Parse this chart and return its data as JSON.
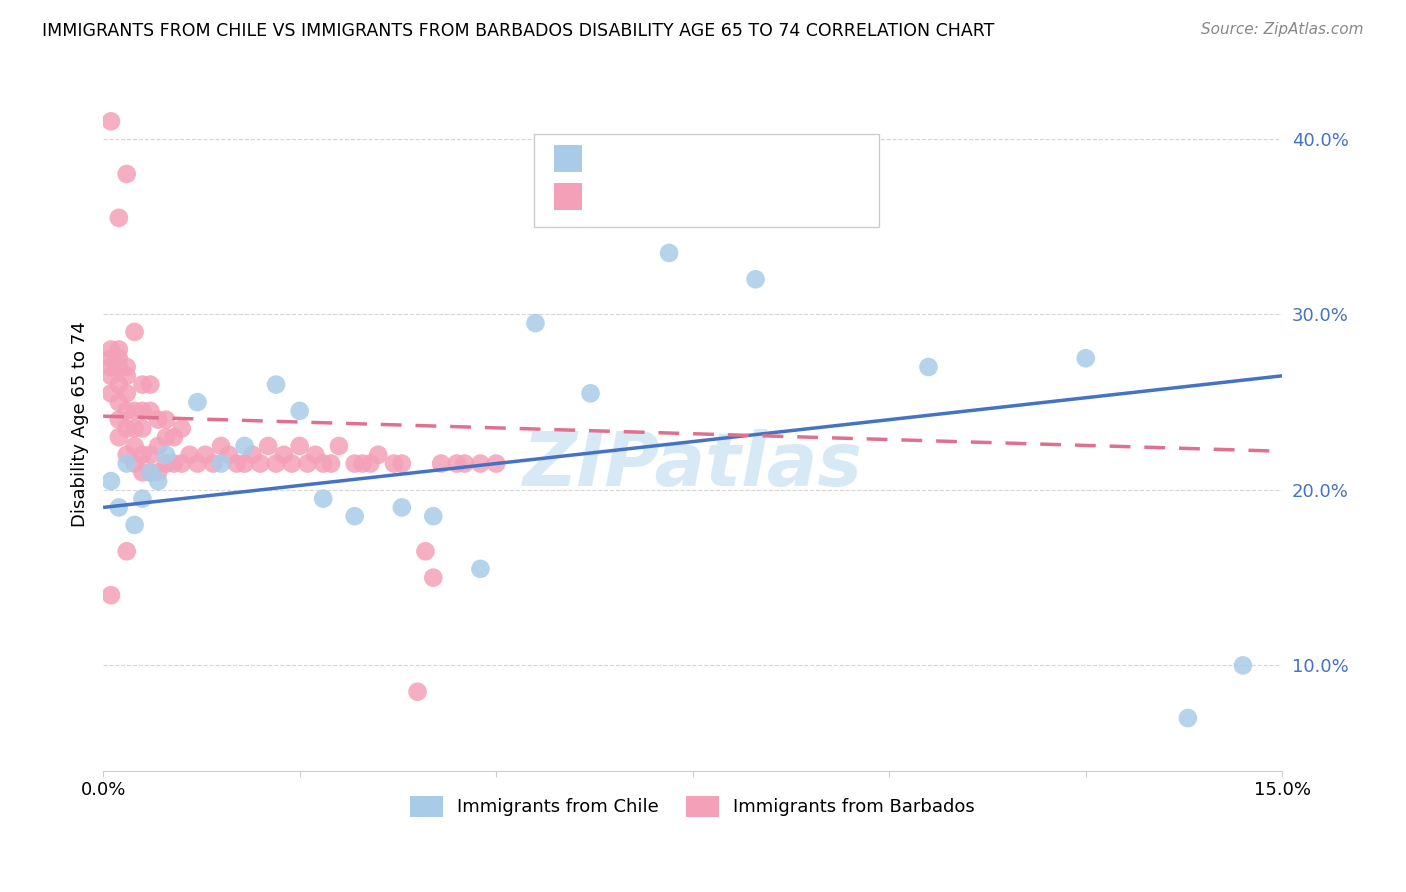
{
  "title": "IMMIGRANTS FROM CHILE VS IMMIGRANTS FROM BARBADOS DISABILITY AGE 65 TO 74 CORRELATION CHART",
  "source": "Source: ZipAtlas.com",
  "ylabel": "Disability Age 65 to 74",
  "xlim": [
    0.0,
    0.15
  ],
  "ylim": [
    0.04,
    0.435
  ],
  "xticks": [
    0.0,
    0.025,
    0.05,
    0.075,
    0.1,
    0.125,
    0.15
  ],
  "xtick_labels": [
    "0.0%",
    "",
    "",
    "",
    "",
    "",
    "15.0%"
  ],
  "yticks": [
    0.1,
    0.2,
    0.3,
    0.4
  ],
  "ytick_labels": [
    "10.0%",
    "20.0%",
    "30.0%",
    "40.0%"
  ],
  "blue_color": "#a8cce8",
  "pink_color": "#f4a0b8",
  "blue_line_color": "#4472c4",
  "pink_line_color": "#e07090",
  "watermark": "ZIPatlas",
  "chile_x": [
    0.001,
    0.002,
    0.003,
    0.004,
    0.005,
    0.006,
    0.007,
    0.008,
    0.012,
    0.015,
    0.018,
    0.022,
    0.025,
    0.028,
    0.032,
    0.038,
    0.042,
    0.048,
    0.055,
    0.062,
    0.072,
    0.083,
    0.105,
    0.125,
    0.138,
    0.145
  ],
  "chile_y": [
    0.205,
    0.19,
    0.215,
    0.18,
    0.195,
    0.21,
    0.205,
    0.22,
    0.25,
    0.215,
    0.225,
    0.26,
    0.245,
    0.195,
    0.185,
    0.19,
    0.185,
    0.155,
    0.295,
    0.255,
    0.335,
    0.32,
    0.27,
    0.275,
    0.07,
    0.1
  ],
  "barbados_x": [
    0.001,
    0.001,
    0.001,
    0.001,
    0.001,
    0.001,
    0.002,
    0.002,
    0.002,
    0.002,
    0.002,
    0.002,
    0.002,
    0.003,
    0.003,
    0.003,
    0.003,
    0.003,
    0.003,
    0.003,
    0.004,
    0.004,
    0.004,
    0.004,
    0.004,
    0.005,
    0.005,
    0.005,
    0.005,
    0.005,
    0.006,
    0.006,
    0.006,
    0.006,
    0.007,
    0.007,
    0.007,
    0.008,
    0.008,
    0.008,
    0.009,
    0.009,
    0.01,
    0.01,
    0.011,
    0.012,
    0.013,
    0.014,
    0.015,
    0.016,
    0.017,
    0.018,
    0.019,
    0.02,
    0.021,
    0.022,
    0.023,
    0.024,
    0.025,
    0.026,
    0.027,
    0.028,
    0.029,
    0.03,
    0.032,
    0.033,
    0.034,
    0.035,
    0.037,
    0.038,
    0.04,
    0.041,
    0.042,
    0.043,
    0.045,
    0.046,
    0.048,
    0.05,
    0.001,
    0.002,
    0.003
  ],
  "barbados_y": [
    0.41,
    0.255,
    0.265,
    0.27,
    0.275,
    0.28,
    0.23,
    0.24,
    0.25,
    0.26,
    0.27,
    0.275,
    0.28,
    0.22,
    0.235,
    0.245,
    0.255,
    0.265,
    0.27,
    0.38,
    0.215,
    0.225,
    0.235,
    0.245,
    0.29,
    0.21,
    0.22,
    0.235,
    0.245,
    0.26,
    0.21,
    0.22,
    0.245,
    0.26,
    0.21,
    0.225,
    0.24,
    0.215,
    0.23,
    0.24,
    0.215,
    0.23,
    0.215,
    0.235,
    0.22,
    0.215,
    0.22,
    0.215,
    0.225,
    0.22,
    0.215,
    0.215,
    0.22,
    0.215,
    0.225,
    0.215,
    0.22,
    0.215,
    0.225,
    0.215,
    0.22,
    0.215,
    0.215,
    0.225,
    0.215,
    0.215,
    0.215,
    0.22,
    0.215,
    0.215,
    0.085,
    0.165,
    0.15,
    0.215,
    0.215,
    0.215,
    0.215,
    0.215,
    0.14,
    0.355,
    0.165
  ],
  "blue_line_x0": 0.0,
  "blue_line_y0": 0.19,
  "blue_line_x1": 0.15,
  "blue_line_y1": 0.265,
  "pink_line_x0": 0.0,
  "pink_line_y0": 0.242,
  "pink_line_x1": 0.15,
  "pink_line_y1": 0.222
}
